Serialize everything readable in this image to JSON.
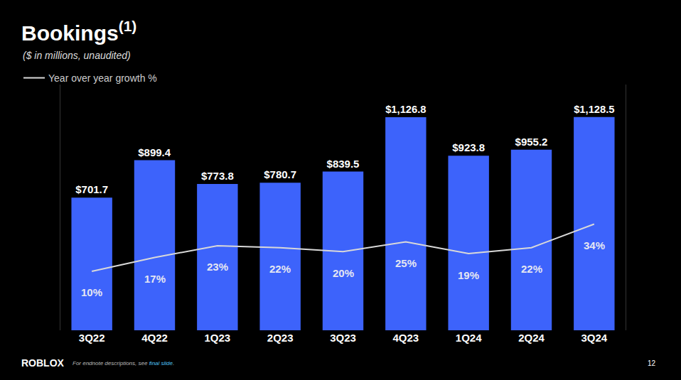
{
  "chart_data": {
    "type": "bar",
    "title": "Bookings",
    "title_superscript": "(1)",
    "subtitle": "($ in millions, unaudited)",
    "categories": [
      "3Q22",
      "4Q22",
      "1Q23",
      "2Q23",
      "3Q23",
      "4Q23",
      "1Q24",
      "2Q24",
      "3Q24"
    ],
    "values": [
      701.7,
      899.4,
      773.8,
      780.7,
      839.5,
      1126.8,
      923.8,
      955.2,
      1128.5
    ],
    "value_labels": [
      "$701.7",
      "$899.4",
      "$773.8",
      "$780.7",
      "$839.5",
      "$1,126.8",
      "$923.8",
      "$955.2",
      "$1,128.5"
    ],
    "color": "#3d63fb",
    "data_labels": true,
    "series": [
      {
        "name": "Year over year growth %",
        "type": "line",
        "axis": "y2",
        "color": "#d9d9d9",
        "values": [
          10,
          17,
          23,
          22,
          20,
          25,
          19,
          22,
          34
        ],
        "value_labels": [
          "10%",
          "17%",
          "23%",
          "22%",
          "20%",
          "25%",
          "19%",
          "22%",
          "34%"
        ]
      }
    ],
    "ylim": [
      0,
      1300
    ],
    "y2lim": [
      -20,
      105
    ],
    "tick_labels": "x",
    "grid": false,
    "legend": "top left"
  },
  "footer": {
    "logo": "ROBLOX",
    "note": "For endnote descriptions, see ",
    "link": "final slide",
    "note_end": ".",
    "page": "12"
  }
}
